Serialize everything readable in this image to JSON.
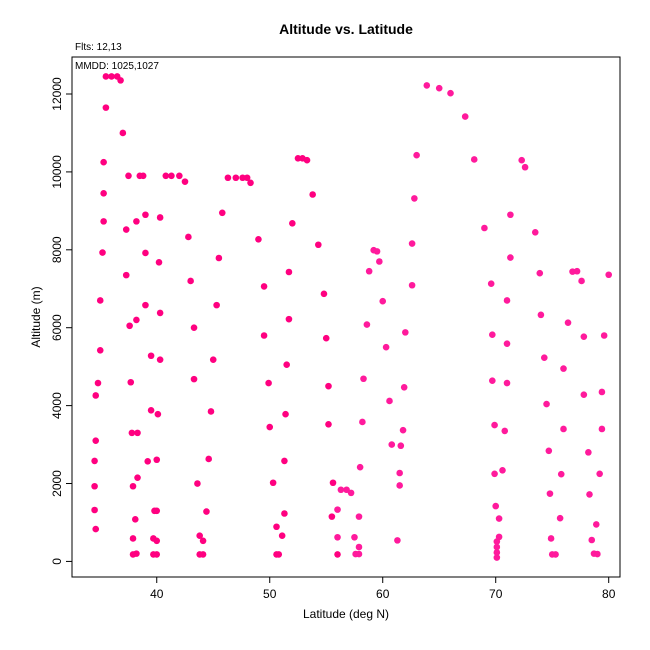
{
  "chart_data": {
    "type": "scatter",
    "title": "Altitude vs. Latitude",
    "xlabel": "Latitude (deg N)",
    "ylabel": "Altitude (m)",
    "xlim": [
      32.5,
      81.0
    ],
    "ylim": [
      -400,
      12950
    ],
    "xticks": [
      40,
      50,
      60,
      70,
      80
    ],
    "yticks": [
      0,
      2000,
      4000,
      6000,
      8000,
      10000,
      12000
    ],
    "grid": false,
    "annotations": [
      "Flts: 12,13",
      "MMDD: 1025,1027"
    ],
    "colors": {
      "primary": "#ff0080",
      "secondary": "#ff1a9c"
    },
    "series": [
      {
        "color": "#ff0080",
        "points": [
          [
            35.5,
            12450
          ],
          [
            36.0,
            12450
          ],
          [
            36.5,
            12450
          ],
          [
            36.8,
            12350
          ],
          [
            35.5,
            11650
          ],
          [
            37.0,
            11000
          ],
          [
            35.3,
            10250
          ],
          [
            37.5,
            9900
          ],
          [
            38.5,
            9900
          ],
          [
            38.8,
            9900
          ],
          [
            35.3,
            9450
          ],
          [
            40.8,
            9900
          ],
          [
            41.3,
            9900
          ],
          [
            42.0,
            9900
          ],
          [
            42.5,
            9750
          ],
          [
            46.3,
            9850
          ],
          [
            47.0,
            9850
          ],
          [
            47.6,
            9850
          ],
          [
            48.0,
            9850
          ],
          [
            48.3,
            9720
          ],
          [
            52.5,
            10350
          ],
          [
            52.9,
            10350
          ],
          [
            53.3,
            10300
          ],
          [
            53.8,
            9420
          ],
          [
            45.8,
            8950
          ],
          [
            40.3,
            8830
          ],
          [
            39.0,
            8900
          ],
          [
            38.2,
            8730
          ],
          [
            35.3,
            8730
          ],
          [
            37.3,
            8520
          ],
          [
            42.8,
            8330
          ],
          [
            49.0,
            8270
          ],
          [
            52.0,
            8680
          ],
          [
            54.3,
            8130
          ],
          [
            35.2,
            7930
          ],
          [
            39.0,
            7920
          ],
          [
            40.2,
            7680
          ],
          [
            45.5,
            7790
          ],
          [
            37.3,
            7350
          ],
          [
            43.0,
            7200
          ],
          [
            49.5,
            7060
          ],
          [
            51.7,
            7430
          ],
          [
            54.8,
            6870
          ],
          [
            35.0,
            6700
          ],
          [
            39.0,
            6580
          ],
          [
            40.3,
            6380
          ],
          [
            45.3,
            6580
          ],
          [
            38.2,
            6200
          ],
          [
            37.6,
            6050
          ],
          [
            43.3,
            6000
          ],
          [
            49.5,
            5800
          ],
          [
            51.7,
            6220
          ],
          [
            55.0,
            5730
          ],
          [
            35.0,
            5420
          ],
          [
            39.5,
            5280
          ],
          [
            40.3,
            5180
          ],
          [
            45.0,
            5180
          ],
          [
            51.5,
            5050
          ],
          [
            37.7,
            4600
          ],
          [
            43.3,
            4680
          ],
          [
            49.9,
            4580
          ],
          [
            55.2,
            4500
          ],
          [
            34.8,
            4580
          ],
          [
            34.6,
            4260
          ],
          [
            39.5,
            3880
          ],
          [
            40.1,
            3780
          ],
          [
            44.8,
            3850
          ],
          [
            51.4,
            3780
          ],
          [
            37.8,
            3300
          ],
          [
            38.3,
            3300
          ],
          [
            50.0,
            3450
          ],
          [
            55.2,
            3520
          ],
          [
            34.6,
            3100
          ],
          [
            39.2,
            2570
          ],
          [
            40.0,
            2610
          ],
          [
            44.6,
            2630
          ],
          [
            51.3,
            2580
          ],
          [
            34.5,
            2580
          ],
          [
            37.9,
            1930
          ],
          [
            38.3,
            2150
          ],
          [
            43.6,
            2000
          ],
          [
            50.3,
            2020
          ],
          [
            55.6,
            2020
          ],
          [
            34.5,
            1930
          ],
          [
            39.8,
            1300
          ],
          [
            40.0,
            1300
          ],
          [
            44.4,
            1280
          ],
          [
            51.3,
            1230
          ],
          [
            34.5,
            1320
          ],
          [
            38.1,
            1080
          ],
          [
            43.8,
            660
          ],
          [
            50.6,
            890
          ],
          [
            55.5,
            1150
          ],
          [
            34.6,
            830
          ],
          [
            39.7,
            590
          ],
          [
            40.0,
            530
          ],
          [
            44.1,
            530
          ],
          [
            51.1,
            660
          ],
          [
            37.9,
            590
          ],
          [
            38.2,
            200
          ],
          [
            37.9,
            180
          ],
          [
            39.7,
            180
          ],
          [
            40.0,
            180
          ],
          [
            43.8,
            180
          ],
          [
            44.1,
            180
          ],
          [
            50.6,
            180
          ],
          [
            50.8,
            180
          ],
          [
            56.0,
            180
          ]
        ]
      },
      {
        "color": "#ff1a9c",
        "points": [
          [
            63.9,
            12220
          ],
          [
            65.0,
            12150
          ],
          [
            66.0,
            12020
          ],
          [
            67.3,
            11420
          ],
          [
            63.0,
            10430
          ],
          [
            68.1,
            10320
          ],
          [
            72.3,
            10300
          ],
          [
            72.6,
            10120
          ],
          [
            62.8,
            9320
          ],
          [
            71.3,
            8900
          ],
          [
            69.0,
            8560
          ],
          [
            73.5,
            8450
          ],
          [
            62.6,
            8160
          ],
          [
            59.2,
            7990
          ],
          [
            59.5,
            7960
          ],
          [
            71.3,
            7800
          ],
          [
            58.8,
            7450
          ],
          [
            59.7,
            7700
          ],
          [
            62.6,
            7090
          ],
          [
            69.6,
            7130
          ],
          [
            76.8,
            7440
          ],
          [
            77.2,
            7450
          ],
          [
            73.9,
            7400
          ],
          [
            80.0,
            7360
          ],
          [
            77.6,
            7200
          ],
          [
            60.0,
            6680
          ],
          [
            71.0,
            6700
          ],
          [
            74.0,
            6330
          ],
          [
            58.6,
            6080
          ],
          [
            62.0,
            5880
          ],
          [
            69.7,
            5820
          ],
          [
            76.4,
            6130
          ],
          [
            79.6,
            5800
          ],
          [
            77.8,
            5770
          ],
          [
            60.3,
            5500
          ],
          [
            71.0,
            5590
          ],
          [
            74.3,
            5230
          ],
          [
            76.0,
            4950
          ],
          [
            69.7,
            4640
          ],
          [
            71.0,
            4580
          ],
          [
            79.4,
            4350
          ],
          [
            58.3,
            4690
          ],
          [
            61.9,
            4470
          ],
          [
            60.6,
            4120
          ],
          [
            74.5,
            4040
          ],
          [
            77.8,
            4280
          ],
          [
            58.2,
            3580
          ],
          [
            69.9,
            3500
          ],
          [
            70.8,
            3350
          ],
          [
            61.8,
            3370
          ],
          [
            76.0,
            3400
          ],
          [
            79.4,
            3400
          ],
          [
            60.8,
            3000
          ],
          [
            61.6,
            2970
          ],
          [
            74.7,
            2840
          ],
          [
            78.2,
            2800
          ],
          [
            58.0,
            2420
          ],
          [
            61.5,
            2270
          ],
          [
            69.9,
            2250
          ],
          [
            70.6,
            2340
          ],
          [
            75.8,
            2240
          ],
          [
            79.2,
            2250
          ],
          [
            61.5,
            1950
          ],
          [
            74.8,
            1740
          ],
          [
            78.3,
            1720
          ],
          [
            56.3,
            1840
          ],
          [
            56.8,
            1840
          ],
          [
            57.2,
            1760
          ],
          [
            56.0,
            1330
          ],
          [
            57.9,
            1150
          ],
          [
            70.0,
            1420
          ],
          [
            70.3,
            1100
          ],
          [
            75.7,
            1110
          ],
          [
            78.9,
            950
          ],
          [
            61.3,
            540
          ],
          [
            70.3,
            630
          ],
          [
            56.0,
            620
          ],
          [
            57.5,
            620
          ],
          [
            74.9,
            590
          ],
          [
            78.5,
            550
          ],
          [
            70.1,
            510
          ],
          [
            70.1,
            370
          ],
          [
            70.1,
            230
          ],
          [
            70.1,
            100
          ],
          [
            57.9,
            370
          ],
          [
            57.6,
            190
          ],
          [
            57.9,
            190
          ],
          [
            75.0,
            180
          ],
          [
            75.3,
            180
          ],
          [
            78.7,
            200
          ],
          [
            79.0,
            190
          ]
        ]
      }
    ]
  }
}
